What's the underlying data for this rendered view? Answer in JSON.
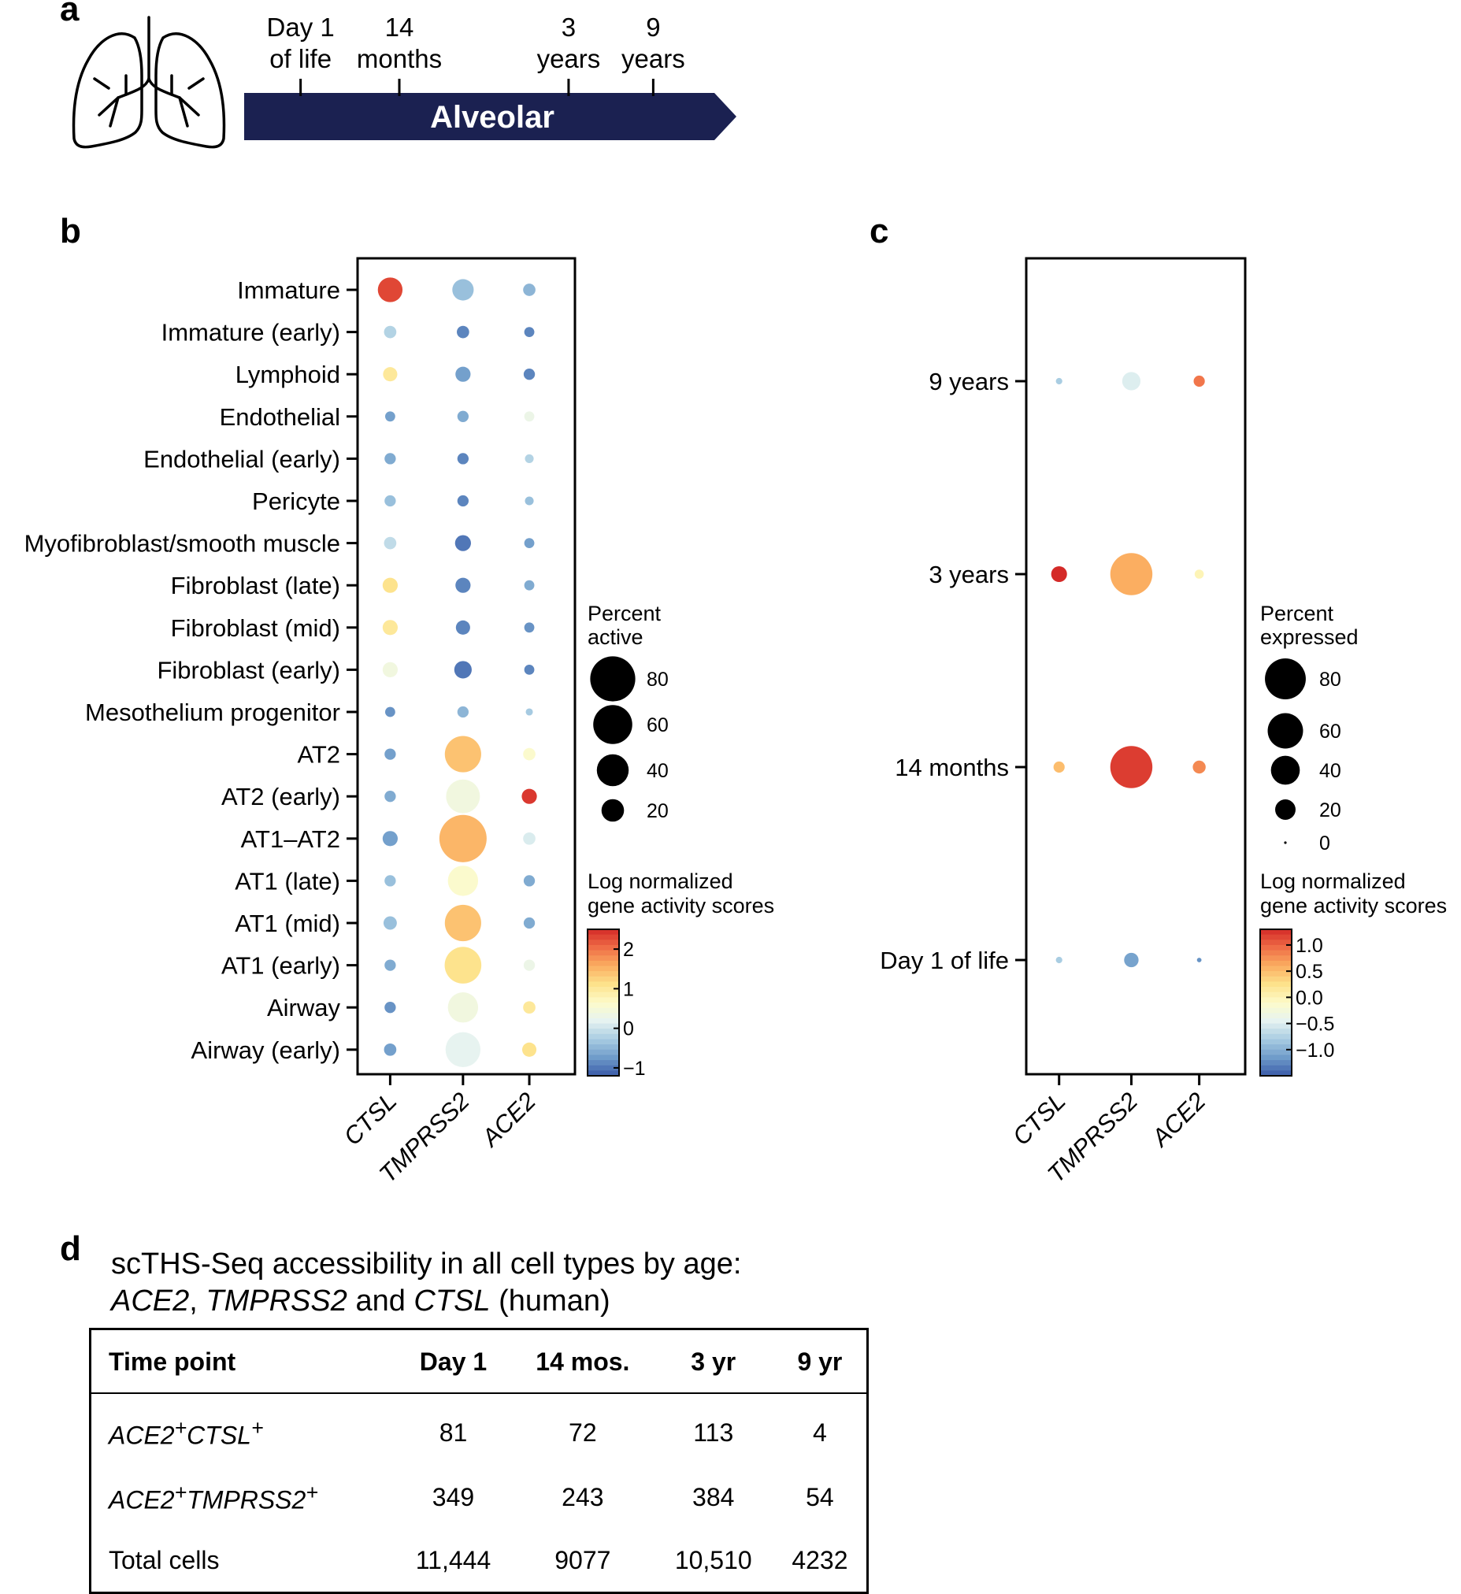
{
  "panel_labels": {
    "a": "a",
    "b": "b",
    "c": "c",
    "d": "d"
  },
  "colors": {
    "arrow": "#1b2151",
    "scale": [
      "#3a5ba8",
      "#6f9cca",
      "#a9cde2",
      "#e6f3f1",
      "#fdfbc9",
      "#fde28b",
      "#fbae61",
      "#ef6d47",
      "#d42a28"
    ]
  },
  "timeline": {
    "arrow_label": "Alveolar",
    "points": [
      {
        "line1": "Day 1",
        "line2": "of life",
        "pos": 0.12
      },
      {
        "line1": "14",
        "line2": "months",
        "pos": 0.33
      },
      {
        "line1": "3",
        "line2": "years",
        "pos": 0.69
      },
      {
        "line1": "9",
        "line2": "years",
        "pos": 0.87
      }
    ]
  },
  "chart_data": [
    {
      "type": "dot",
      "panel": "b",
      "genes": [
        "CTSL",
        "TMPRSS2",
        "ACE2"
      ],
      "cell_types": [
        "Immature",
        "Immature (early)",
        "Lymphoid",
        "Endothelial",
        "Endothelial (early)",
        "Pericyte",
        "Myofibroblast/smooth muscle",
        "Fibroblast (late)",
        "Fibroblast (mid)",
        "Fibroblast (early)",
        "Mesothelium progenitor",
        "AT2",
        "AT2 (early)",
        "AT1–AT2",
        "AT1 (late)",
        "AT1 (mid)",
        "AT1 (early)",
        "Airway",
        "Airway (early)"
      ],
      "percent": [
        [
          24,
          18,
          6
        ],
        [
          6,
          6,
          4
        ],
        [
          8,
          9,
          5
        ],
        [
          4,
          5,
          4
        ],
        [
          5,
          5,
          3
        ],
        [
          5,
          5,
          3
        ],
        [
          6,
          10,
          4
        ],
        [
          9,
          9,
          4
        ],
        [
          9,
          8,
          4
        ],
        [
          9,
          12,
          4
        ],
        [
          4,
          5,
          2
        ],
        [
          5,
          52,
          6
        ],
        [
          5,
          45,
          9
        ],
        [
          9,
          88,
          6
        ],
        [
          5,
          36,
          5
        ],
        [
          7,
          52,
          5
        ],
        [
          5,
          53,
          5
        ],
        [
          5,
          36,
          6
        ],
        [
          6,
          48,
          8
        ]
      ],
      "score": [
        [
          2.3,
          -0.4,
          -0.5
        ],
        [
          -0.2,
          -0.9,
          -0.9
        ],
        [
          1.0,
          -0.7,
          -0.9
        ],
        [
          -0.7,
          -0.6,
          0.3
        ],
        [
          -0.6,
          -0.9,
          -0.2
        ],
        [
          -0.4,
          -0.9,
          -0.4
        ],
        [
          -0.1,
          -1.0,
          -0.7
        ],
        [
          1.1,
          -0.9,
          -0.6
        ],
        [
          1.0,
          -0.9,
          -0.8
        ],
        [
          0.4,
          -1.0,
          -0.9
        ],
        [
          -0.8,
          -0.5,
          -0.3
        ],
        [
          -0.7,
          1.4,
          0.6
        ],
        [
          -0.6,
          0.4,
          2.4
        ],
        [
          -0.7,
          1.5,
          0.1
        ],
        [
          -0.4,
          0.6,
          -0.6
        ],
        [
          -0.4,
          1.4,
          -0.6
        ],
        [
          -0.6,
          1.1,
          0.3
        ],
        [
          -0.8,
          0.4,
          1.0
        ],
        [
          -0.7,
          0.2,
          1.1
        ]
      ],
      "size_legend": {
        "title_line1": "Percent",
        "title_line2": "active",
        "values": [
          80,
          60,
          40,
          20
        ]
      },
      "color_legend": {
        "title_line1": "Log normalized",
        "title_line2": "gene activity scores",
        "ticks": [
          2,
          1,
          0,
          -1
        ],
        "tick_labels": [
          "2",
          "1",
          "0",
          "−1"
        ],
        "range": [
          -1.2,
          2.5
        ]
      }
    },
    {
      "type": "dot",
      "panel": "c",
      "genes": [
        "CTSL",
        "TMPRSS2",
        "ACE2"
      ],
      "time_points": [
        "9 years",
        "3 years",
        "14 months",
        "Day 1 of life"
      ],
      "percent": [
        [
          2,
          16,
          6
        ],
        [
          12,
          85,
          4
        ],
        [
          6,
          85,
          8
        ],
        [
          2,
          10,
          1
        ]
      ],
      "score": [
        [
          -0.8,
          -0.5,
          0.9
        ],
        [
          1.3,
          0.6,
          0.0
        ],
        [
          0.5,
          1.2,
          0.8
        ],
        [
          -0.8,
          -1.1,
          -1.2
        ]
      ],
      "size_legend": {
        "title_line1": "Percent",
        "title_line2": "expressed",
        "values": [
          80,
          60,
          40,
          20,
          0
        ],
        "value_labels": [
          "80",
          "60",
          "40",
          "20",
          "0"
        ]
      },
      "color_legend": {
        "title_line1": "Log normalized",
        "title_line2": "gene activity scores",
        "ticks": [
          1.0,
          0.5,
          0.0,
          -0.5,
          -1.0
        ],
        "tick_labels": [
          "1.0",
          "0.5",
          "0.0",
          "−0.5",
          "−1.0"
        ],
        "range": [
          -1.5,
          1.3
        ]
      }
    },
    {
      "type": "table",
      "panel": "d",
      "title_line1": "scTHS-Seq accessibility in all cell types by age:",
      "title_line2_parts": [
        "ACE2",
        ", ",
        "TMPRSS2",
        " and ",
        "CTSL",
        " (human)"
      ],
      "columns": [
        "Time point",
        "Day 1",
        "14 mos.",
        "3 yr",
        "9 yr"
      ],
      "rows": [
        {
          "label_parts": [
            "ACE2",
            "+",
            "CTSL",
            "+"
          ],
          "values": [
            "81",
            "72",
            "113",
            "4"
          ]
        },
        {
          "label_parts": [
            "ACE2",
            "+",
            "TMPRSS2",
            "+"
          ],
          "values": [
            "349",
            "243",
            "384",
            "54"
          ]
        },
        {
          "label": "Total cells",
          "values": [
            "11,444",
            "9077",
            "10,510",
            "4232"
          ]
        }
      ]
    }
  ]
}
